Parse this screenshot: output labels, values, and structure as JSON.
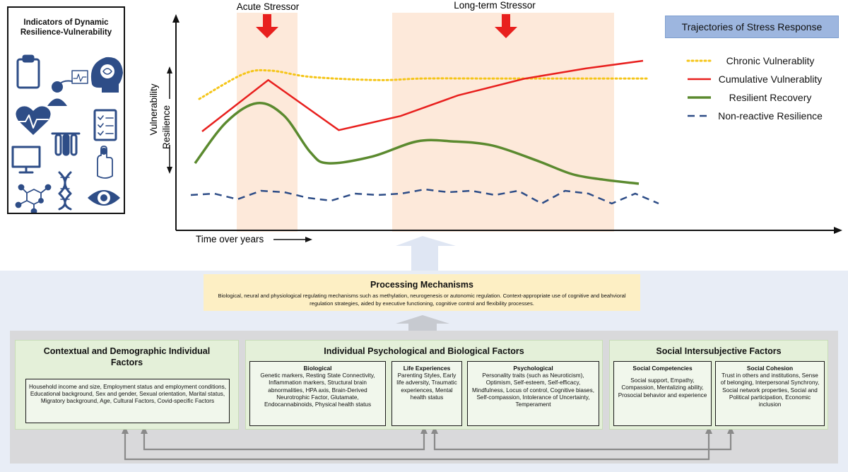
{
  "indicators": {
    "title_line1": "Indicators of Dynamic",
    "title_line2": "Resilience-Vulnerability",
    "icons": [
      "clipboard-icon",
      "medical-monitor-icon",
      "brain-head-icon",
      "heart-rate-icon",
      "checklist-icon",
      "monitor-icon",
      "test-tubes-icon",
      "dna-icon",
      "hand-sensor-icon",
      "molecule-icon",
      "eye-icon"
    ],
    "icon_color": "#2e4d87"
  },
  "chart": {
    "stressor_acute": "Acute Stressor",
    "stressor_longterm": "Long-term Stressor",
    "y_label_top": "Vulnerability",
    "y_label_bottom": "Resilience",
    "x_label": "Time over years",
    "legend_title": "Trajectories of Stress Response",
    "shade_color": "#fde7d6",
    "arrow_color": "#e8201e"
  },
  "chart_data": {
    "type": "line",
    "title": "Trajectories of Stress Response",
    "xlabel": "Time over years",
    "ylabel": "Vulnerability / Resilience",
    "legend_position": "top-right",
    "series": [
      {
        "name": "Chronic Vulnerablity",
        "color": "#f5c518",
        "style": "dotted",
        "x": [
          0.0,
          0.1,
          0.16,
          0.25,
          0.4,
          0.5,
          0.65,
          0.8,
          0.95,
          1.0
        ],
        "y": [
          0.7,
          0.86,
          0.88,
          0.84,
          0.82,
          0.83,
          0.83,
          0.83,
          0.83,
          0.83
        ]
      },
      {
        "name": "Cumulative Vulnerablity",
        "color": "#e8201e",
        "style": "solid",
        "x": [
          0.0,
          0.15,
          0.31,
          0.45,
          0.58,
          0.73,
          0.87,
          1.0
        ],
        "y": [
          0.45,
          0.85,
          0.46,
          0.57,
          0.73,
          0.86,
          0.94,
          1.0
        ]
      },
      {
        "name": "Resilient Recovery",
        "color": "#5b8a2f",
        "style": "solid",
        "x": [
          0.0,
          0.07,
          0.14,
          0.2,
          0.26,
          0.3,
          0.4,
          0.5,
          0.58,
          0.67,
          0.77,
          0.85,
          0.92,
          1.0
        ],
        "y": [
          0.2,
          0.5,
          0.64,
          0.55,
          0.28,
          0.2,
          0.25,
          0.36,
          0.36,
          0.33,
          0.22,
          0.12,
          0.08,
          0.05
        ]
      },
      {
        "name": "Non-reactive Resilience",
        "color": "#2e4d87",
        "style": "dashed",
        "x": [
          0.0,
          0.05,
          0.1,
          0.15,
          0.2,
          0.25,
          0.3,
          0.35,
          0.4,
          0.45,
          0.5,
          0.55,
          0.6,
          0.65,
          0.7,
          0.75,
          0.8,
          0.85,
          0.9,
          0.95,
          1.0
        ],
        "y": [
          0.0,
          0.02,
          -0.06,
          0.06,
          0.04,
          -0.04,
          -0.08,
          0.02,
          0.0,
          0.02,
          0.08,
          0.04,
          0.06,
          0.0,
          0.06,
          -0.12,
          0.06,
          0.02,
          -0.12,
          0.02,
          -0.12
        ]
      }
    ]
  },
  "processing": {
    "title": "Processing Mechanisms",
    "body": "Biological, neural  and physiological regulating mechanisms such as methylation, neurogenesis or autonomic regulation. Context-appropriate use of cognitive and beahvioral regulation strategies, aided by executive functioning, cognitive control and flexibility processes."
  },
  "contextual": {
    "title": "Contextual and Demographic Individual Factors",
    "body": "Household income and size, Employment status and employment conditions, Educational background, Sex and gender, Sexual orientation, Marital status, Migratory background, Age, Cultural Factors, Covid-specific Factors"
  },
  "individual": {
    "title": "Individual Psychological and Biological Factors",
    "biological_title": "Biological",
    "biological_body": "Genetic markers, Resting State Connectivity, Inflammation markers, Structural brain abnormalities, HPA axis, Brain-Derived Neurotrophic Factor, Glutamate, Endocannabinoids, Physical health status",
    "life_title": "Life Experiences",
    "life_body": "Parenting Styles, Early life adversity, Traumatic experiences, Mental health status",
    "psych_title": "Psychological",
    "psych_body": "Personality traits (such as Neuroticism), Optimism, Self-esteem, Self-efficacy, Mindfulness, Locus of control, Cognitive biases, Self-compassion, Intolerance of Uncertainty, Temperament"
  },
  "social": {
    "title": "Social Intersubjective Factors",
    "competencies_title": "Social Competencies",
    "competencies_body": "Social support, Empathy, Compassion, Mentalizing ability, Prosocial behavior and experience",
    "cohesion_title": "Social Cohesion",
    "cohesion_body": "Trust in others and institutions, Sense of belonging, Interpersonal Synchrony, Social network properties, Social and Political participation, Economic inclusion"
  }
}
